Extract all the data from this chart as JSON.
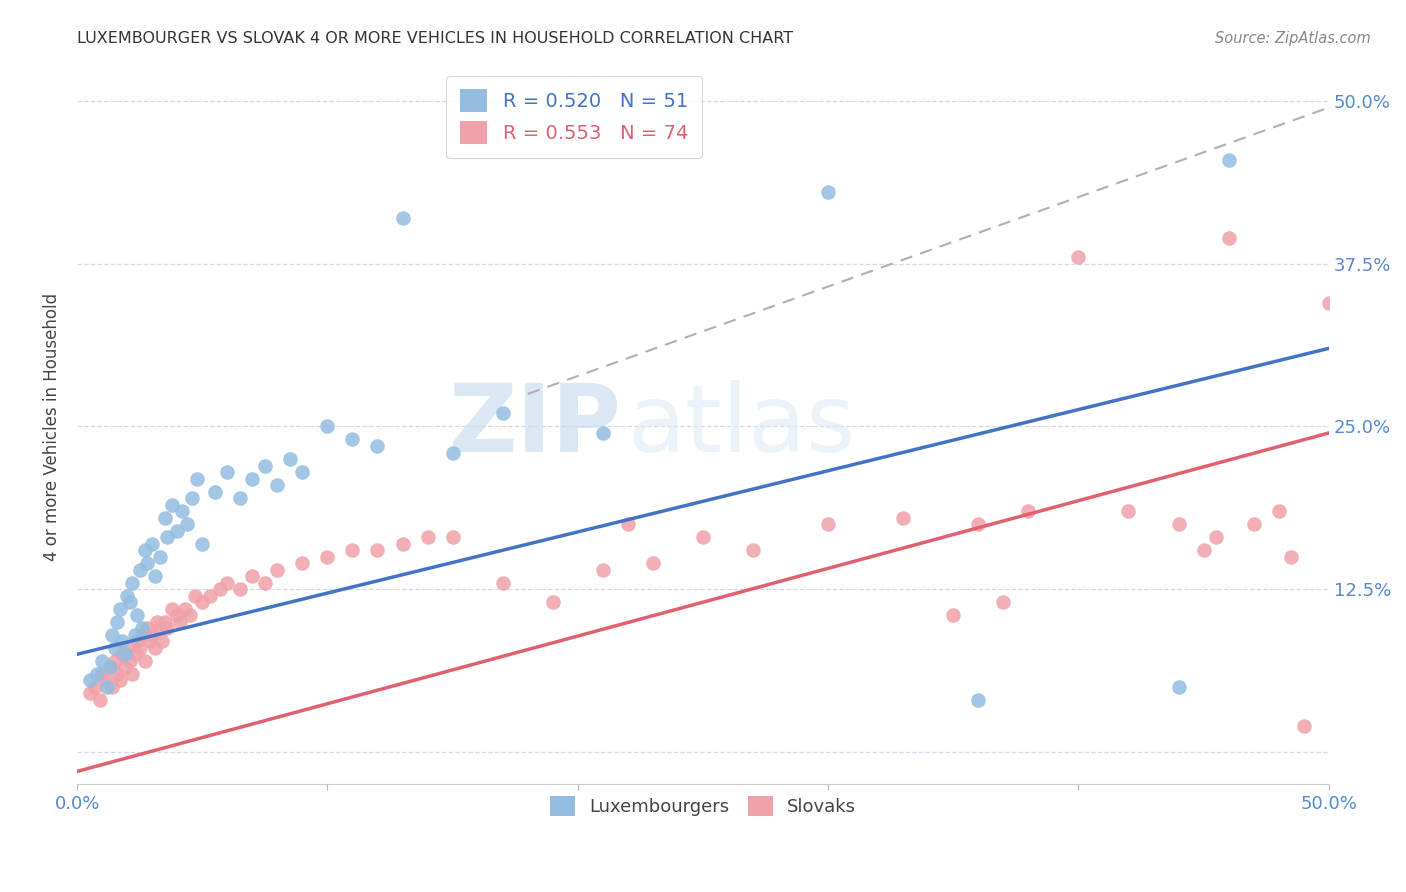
{
  "title": "LUXEMBOURGER VS SLOVAK 4 OR MORE VEHICLES IN HOUSEHOLD CORRELATION CHART",
  "source": "Source: ZipAtlas.com",
  "ylabel": "4 or more Vehicles in Household",
  "xlim": [
    0.0,
    0.5
  ],
  "ylim": [
    -0.025,
    0.525
  ],
  "xticks": [
    0.0,
    0.1,
    0.2,
    0.3,
    0.4,
    0.5
  ],
  "xticklabels": [
    "0.0%",
    "",
    "",
    "",
    "",
    "50.0%"
  ],
  "yticks": [
    0.0,
    0.125,
    0.25,
    0.375,
    0.5
  ],
  "right_yticklabels": [
    "",
    "12.5%",
    "25.0%",
    "37.5%",
    "50.0%"
  ],
  "lux_color": "#92bce0",
  "slo_color": "#f0a0a8",
  "lux_line_color": "#4472c4",
  "slo_line_color": "#e06070",
  "dashed_line_color": "#b0b0b0",
  "watermark_zip": "ZIP",
  "watermark_atlas": "atlas",
  "background_color": "#ffffff",
  "grid_color": "#d8d8e8",
  "tick_color": "#5588cc",
  "lux_trend_x": [
    0.0,
    0.5
  ],
  "lux_trend_y": [
    0.075,
    0.31
  ],
  "slo_trend_x": [
    0.0,
    0.5
  ],
  "slo_trend_y": [
    -0.015,
    0.245
  ],
  "dashed_trend_x": [
    0.18,
    0.5
  ],
  "dashed_trend_y": [
    0.275,
    0.495
  ],
  "lux_scatter_x": [
    0.005,
    0.008,
    0.01,
    0.012,
    0.013,
    0.014,
    0.015,
    0.016,
    0.017,
    0.018,
    0.019,
    0.02,
    0.021,
    0.022,
    0.023,
    0.024,
    0.025,
    0.026,
    0.027,
    0.028,
    0.03,
    0.031,
    0.033,
    0.035,
    0.036,
    0.038,
    0.04,
    0.042,
    0.044,
    0.046,
    0.048,
    0.05,
    0.055,
    0.06,
    0.065,
    0.07,
    0.075,
    0.08,
    0.085,
    0.09,
    0.1,
    0.11,
    0.12,
    0.13,
    0.15,
    0.17,
    0.21,
    0.3,
    0.36,
    0.44,
    0.46
  ],
  "lux_scatter_y": [
    0.055,
    0.06,
    0.07,
    0.05,
    0.065,
    0.09,
    0.08,
    0.1,
    0.11,
    0.085,
    0.075,
    0.12,
    0.115,
    0.13,
    0.09,
    0.105,
    0.14,
    0.095,
    0.155,
    0.145,
    0.16,
    0.135,
    0.15,
    0.18,
    0.165,
    0.19,
    0.17,
    0.185,
    0.175,
    0.195,
    0.21,
    0.16,
    0.2,
    0.215,
    0.195,
    0.21,
    0.22,
    0.205,
    0.225,
    0.215,
    0.25,
    0.24,
    0.235,
    0.41,
    0.23,
    0.26,
    0.245,
    0.43,
    0.04,
    0.05,
    0.455
  ],
  "slo_scatter_x": [
    0.005,
    0.007,
    0.009,
    0.01,
    0.011,
    0.013,
    0.014,
    0.015,
    0.016,
    0.017,
    0.018,
    0.019,
    0.02,
    0.021,
    0.022,
    0.023,
    0.024,
    0.025,
    0.026,
    0.027,
    0.028,
    0.029,
    0.03,
    0.031,
    0.032,
    0.033,
    0.034,
    0.035,
    0.036,
    0.038,
    0.04,
    0.041,
    0.043,
    0.045,
    0.047,
    0.05,
    0.053,
    0.057,
    0.06,
    0.065,
    0.07,
    0.075,
    0.08,
    0.09,
    0.1,
    0.11,
    0.12,
    0.13,
    0.14,
    0.15,
    0.17,
    0.19,
    0.21,
    0.22,
    0.23,
    0.25,
    0.27,
    0.3,
    0.33,
    0.36,
    0.38,
    0.4,
    0.42,
    0.44,
    0.455,
    0.47,
    0.48,
    0.49,
    0.35,
    0.37,
    0.45,
    0.46,
    0.485,
    0.5
  ],
  "slo_scatter_y": [
    0.045,
    0.05,
    0.04,
    0.06,
    0.055,
    0.065,
    0.05,
    0.07,
    0.06,
    0.055,
    0.075,
    0.065,
    0.08,
    0.07,
    0.06,
    0.075,
    0.085,
    0.08,
    0.09,
    0.07,
    0.095,
    0.085,
    0.09,
    0.08,
    0.1,
    0.095,
    0.085,
    0.1,
    0.095,
    0.11,
    0.105,
    0.1,
    0.11,
    0.105,
    0.12,
    0.115,
    0.12,
    0.125,
    0.13,
    0.125,
    0.135,
    0.13,
    0.14,
    0.145,
    0.15,
    0.155,
    0.155,
    0.16,
    0.165,
    0.165,
    0.13,
    0.115,
    0.14,
    0.175,
    0.145,
    0.165,
    0.155,
    0.175,
    0.18,
    0.175,
    0.185,
    0.38,
    0.185,
    0.175,
    0.165,
    0.175,
    0.185,
    0.02,
    0.105,
    0.115,
    0.155,
    0.395,
    0.15,
    0.345
  ]
}
